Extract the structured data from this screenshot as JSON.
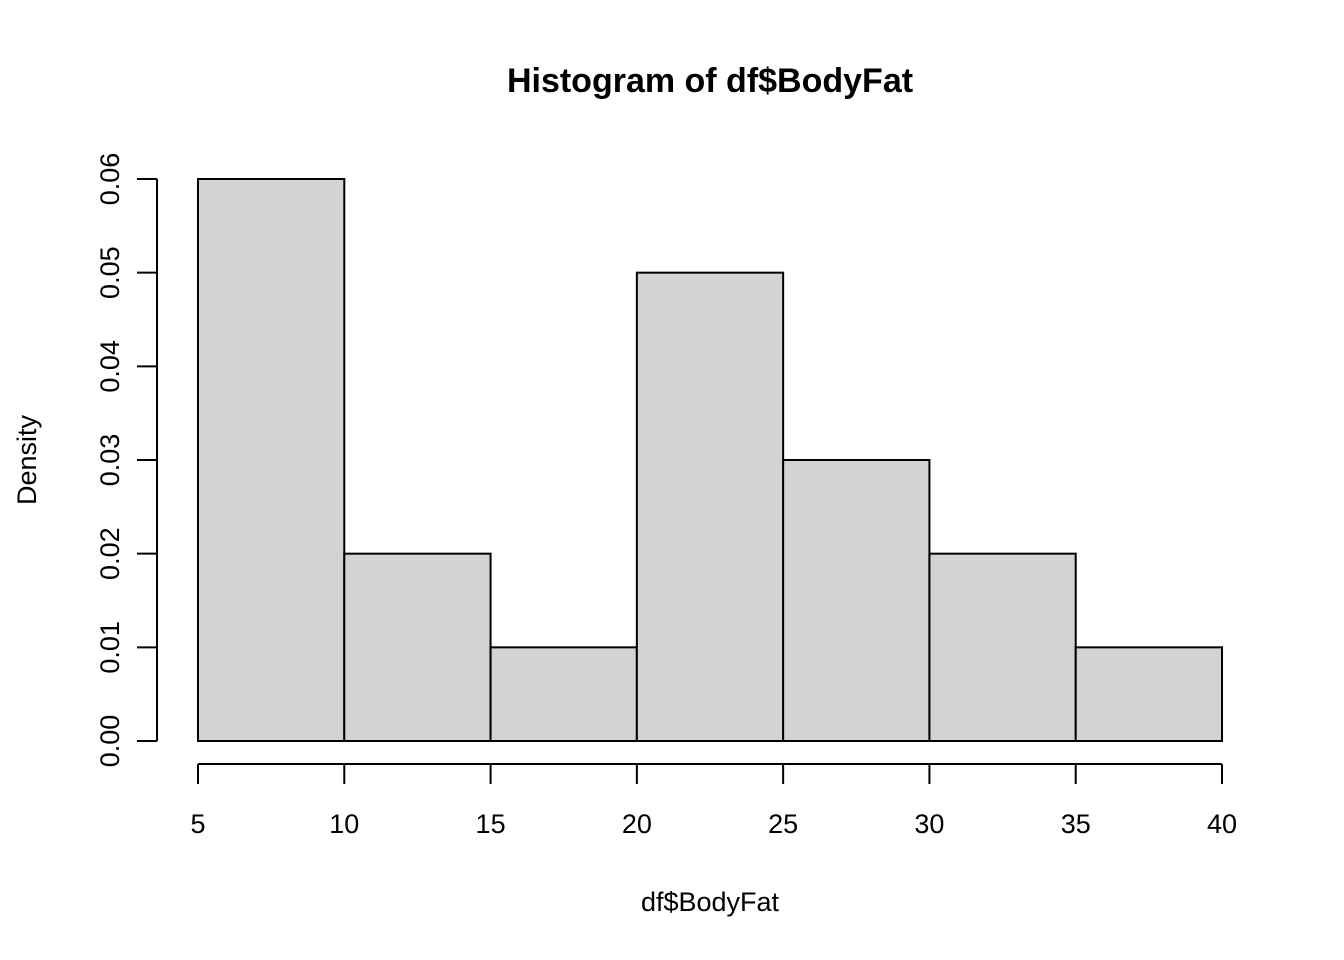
{
  "chart_data": {
    "type": "bar",
    "title": "Histogram of df$BodyFat",
    "xlabel": "df$BodyFat",
    "ylabel": "Density",
    "bins": [
      {
        "start": 5,
        "end": 10,
        "density": 0.06
      },
      {
        "start": 10,
        "end": 15,
        "density": 0.02
      },
      {
        "start": 15,
        "end": 20,
        "density": 0.01
      },
      {
        "start": 20,
        "end": 25,
        "density": 0.05
      },
      {
        "start": 25,
        "end": 30,
        "density": 0.03
      },
      {
        "start": 30,
        "end": 35,
        "density": 0.02
      },
      {
        "start": 35,
        "end": 40,
        "density": 0.01
      }
    ],
    "xlim": [
      5,
      40
    ],
    "ylim": [
      0,
      0.06
    ],
    "x_ticks": [
      "5",
      "10",
      "15",
      "20",
      "25",
      "30",
      "35",
      "40"
    ],
    "y_ticks": [
      "0.00",
      "0.01",
      "0.02",
      "0.03",
      "0.04",
      "0.05",
      "0.06"
    ],
    "colors": {
      "bar_fill": "#d3d3d3",
      "bar_stroke": "#000000",
      "background": "#ffffff"
    },
    "grid": false
  }
}
